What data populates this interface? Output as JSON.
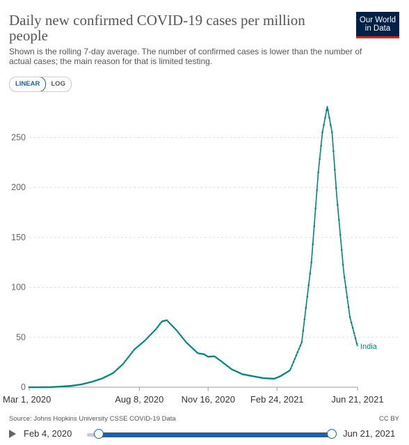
{
  "header": {
    "title": "Daily new confirmed COVID-19 cases per million people",
    "subtitle": "Shown is the rolling 7-day average. The number of confirmed cases is lower than the number of actual cases; the main reason for that is limited testing.",
    "logo_line1": "Our World",
    "logo_line2": "in Data"
  },
  "controls": {
    "linear_label": "LINEAR",
    "log_label": "LOG"
  },
  "footer": {
    "source": "Source: Johns Hopkins University CSSE COVID-19 Data",
    "license": "CC BY"
  },
  "timeline": {
    "start_label": "Feb 4, 2020",
    "end_label": "Jun 21, 2021",
    "start_fraction": 0.0,
    "end_fraction": 1.0
  },
  "colors": {
    "series": "#00847e",
    "accent": "#1d62a6",
    "grid": "#dddddd",
    "brand_bg": "#002147",
    "brand_red": "#ce261e"
  },
  "chart_data": {
    "type": "line",
    "title": "Daily new confirmed COVID-19 cases per million people",
    "xlabel": "",
    "ylabel": "",
    "x_range": [
      "2020-03-01",
      "2021-06-21"
    ],
    "ylim": [
      0,
      290
    ],
    "yticks": [
      0,
      50,
      100,
      150,
      200,
      250
    ],
    "xticks": [
      "2020-03-01",
      "2020-08-08",
      "2020-11-16",
      "2021-02-24",
      "2021-06-21"
    ],
    "xtick_labels": [
      "Mar 1, 2020",
      "Aug 8, 2020",
      "Nov 16, 2020",
      "Feb 24, 2021",
      "Jun 21, 2021"
    ],
    "grid": "horizontal-dashed",
    "series": [
      {
        "name": "India",
        "points": [
          [
            "2020-03-01",
            0.0
          ],
          [
            "2020-03-15",
            0.01
          ],
          [
            "2020-04-01",
            0.1
          ],
          [
            "2020-04-15",
            0.6
          ],
          [
            "2020-05-01",
            1.4
          ],
          [
            "2020-05-15",
            2.7
          ],
          [
            "2020-06-01",
            5.6
          ],
          [
            "2020-06-15",
            8.8
          ],
          [
            "2020-07-01",
            14.2
          ],
          [
            "2020-07-15",
            23.0
          ],
          [
            "2020-08-01",
            38.0
          ],
          [
            "2020-08-15",
            46.0
          ],
          [
            "2020-09-01",
            58.0
          ],
          [
            "2020-09-10",
            66.0
          ],
          [
            "2020-09-17",
            67.0
          ],
          [
            "2020-10-01",
            57.0
          ],
          [
            "2020-10-15",
            45.0
          ],
          [
            "2020-11-01",
            34.0
          ],
          [
            "2020-11-10",
            33.0
          ],
          [
            "2020-11-16",
            30.5
          ],
          [
            "2020-11-25",
            31.0
          ],
          [
            "2020-12-05",
            26.0
          ],
          [
            "2020-12-20",
            18.0
          ],
          [
            "2021-01-05",
            13.0
          ],
          [
            "2021-01-20",
            11.0
          ],
          [
            "2021-02-05",
            9.0
          ],
          [
            "2021-02-20",
            8.5
          ],
          [
            "2021-03-01",
            11.0
          ],
          [
            "2021-03-15",
            17.0
          ],
          [
            "2021-04-01",
            45.0
          ],
          [
            "2021-04-15",
            125.0
          ],
          [
            "2021-04-25",
            215.0
          ],
          [
            "2021-05-01",
            255.0
          ],
          [
            "2021-05-08",
            281.0
          ],
          [
            "2021-05-15",
            255.0
          ],
          [
            "2021-05-22",
            190.0
          ],
          [
            "2021-06-01",
            115.0
          ],
          [
            "2021-06-10",
            70.0
          ],
          [
            "2021-06-21",
            41.0
          ]
        ]
      }
    ]
  }
}
